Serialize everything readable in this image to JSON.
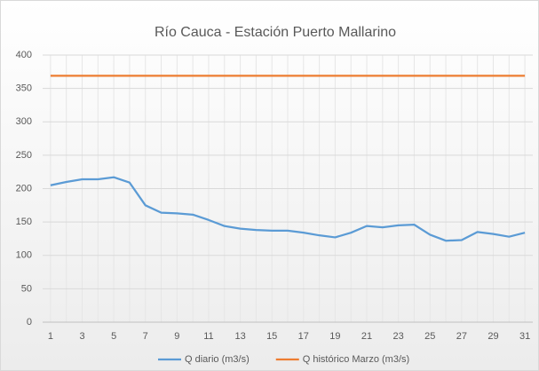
{
  "chart_data": {
    "type": "line",
    "title": "Río Cauca - Estación Puerto Mallarino",
    "categories": [
      1,
      null,
      3,
      null,
      5,
      null,
      7,
      null,
      9,
      null,
      11,
      null,
      13,
      null,
      15,
      null,
      17,
      null,
      19,
      null,
      21,
      null,
      23,
      null,
      25,
      null,
      27,
      null,
      29,
      null,
      31
    ],
    "series": [
      {
        "name": "Q diario (m3/s)",
        "color": "#5b9bd5",
        "values": [
          205,
          210,
          214,
          214,
          217,
          209,
          175,
          164,
          163,
          161,
          153,
          144,
          140,
          138,
          137,
          137,
          134,
          130,
          127,
          134,
          144,
          142,
          145,
          146,
          131,
          122,
          123,
          135,
          132,
          128,
          134
        ]
      },
      {
        "name": "Q histórico Marzo (m3/s)",
        "color": "#ed7d31",
        "values": [
          369,
          369,
          369,
          369,
          369,
          369,
          369,
          369,
          369,
          369,
          369,
          369,
          369,
          369,
          369,
          369,
          369,
          369,
          369,
          369,
          369,
          369,
          369,
          369,
          369,
          369,
          369,
          369,
          369,
          369,
          369
        ]
      }
    ],
    "ylim": [
      0,
      400
    ],
    "yticks": [
      0,
      50,
      100,
      150,
      200,
      250,
      300,
      350,
      400
    ],
    "grid": true,
    "legend": "bottom"
  }
}
